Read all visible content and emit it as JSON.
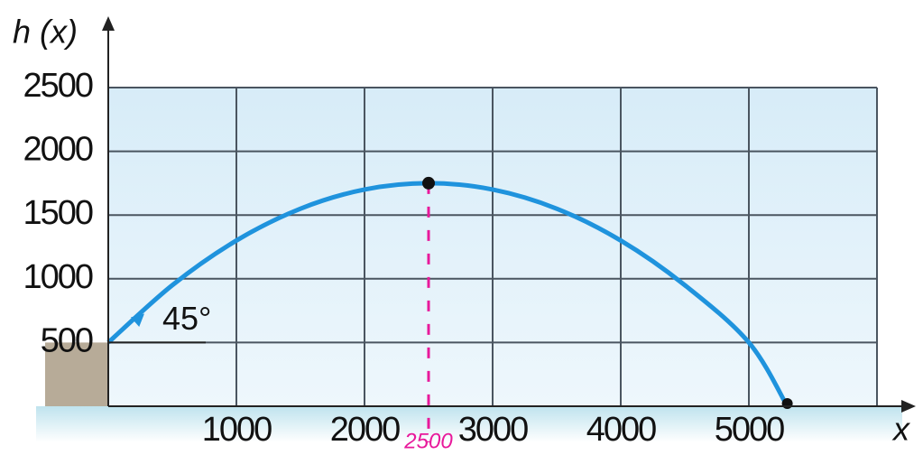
{
  "chart_data": {
    "type": "line",
    "y_label": "h (x)",
    "x_label": "x",
    "x": [
      0,
      500,
      1000,
      1500,
      2000,
      2500,
      3000,
      3500,
      4000,
      4500,
      5000,
      5300
    ],
    "values": [
      500,
      950,
      1300,
      1550,
      1700,
      1750,
      1700,
      1550,
      1300,
      950,
      500,
      0
    ],
    "color": "#1f93dd",
    "xlim": [
      0,
      6000
    ],
    "ylim": [
      0,
      2500
    ],
    "xticks": [
      1000,
      2000,
      3000,
      4000,
      5000
    ],
    "yticks": [
      500,
      1000,
      1500,
      2000,
      2500
    ],
    "grid": true,
    "angle_label": "45°",
    "peak_note": "2500"
  }
}
